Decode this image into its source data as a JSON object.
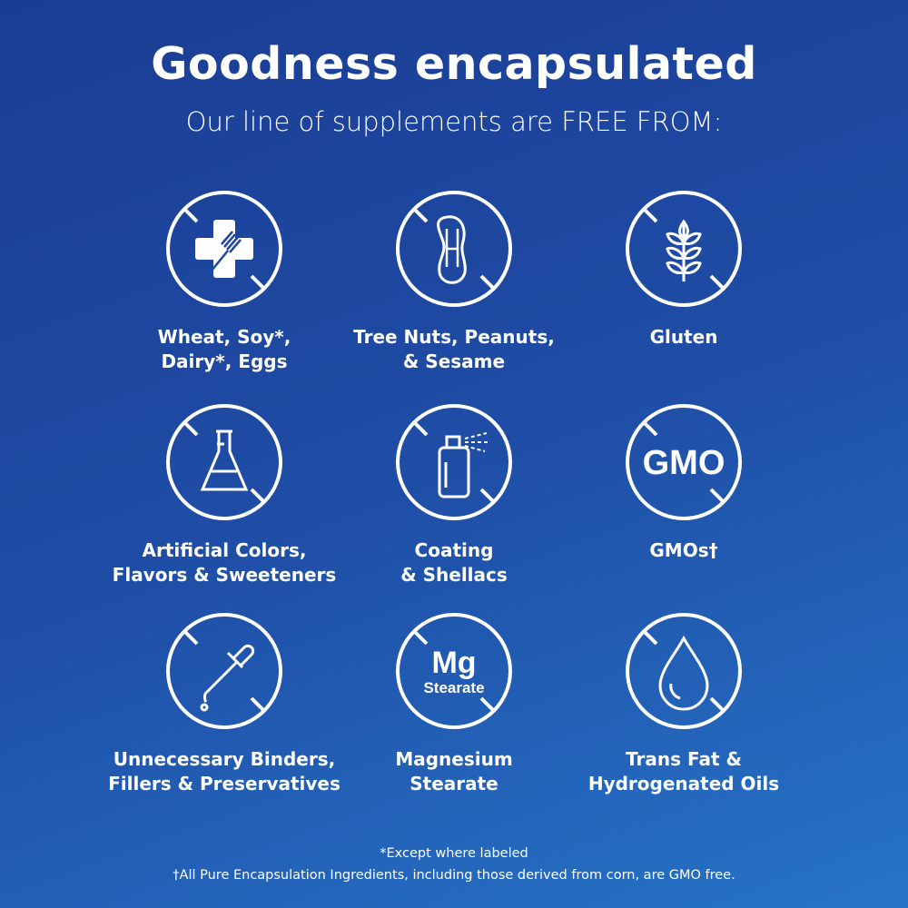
{
  "header": {
    "title": "Goodness encapsulated",
    "subtitle": "Our line of supplements are FREE FROM:"
  },
  "items": [
    {
      "icon": "allergen-cross-fork-icon",
      "label": "Wheat, Soy*,\nDairy*, Eggs"
    },
    {
      "icon": "peanut-icon",
      "label": "Tree Nuts, Peanuts,\n& Sesame"
    },
    {
      "icon": "wheat-icon",
      "label": "Gluten"
    },
    {
      "icon": "flask-icon",
      "label": "Artificial Colors,\nFlavors & Sweeteners"
    },
    {
      "icon": "spray-can-icon",
      "label": "Coating\n& Shellacs"
    },
    {
      "icon": "gmo-text-icon",
      "label": "GMOs†",
      "icon_text": "GMO"
    },
    {
      "icon": "dropper-icon",
      "label": "Unnecessary Binders,\nFillers & Preservatives"
    },
    {
      "icon": "mg-stearate-icon",
      "label": "Magnesium\nStearate",
      "icon_text": "Mg",
      "icon_subtext": "Stearate"
    },
    {
      "icon": "oil-drop-icon",
      "label": "Trans Fat &\nHydrogenated Oils"
    }
  ],
  "footnotes": [
    "*Except where labeled",
    "†All Pure Encapsulation Ingredients, including those derived from corn, are GMO free."
  ],
  "colors": {
    "background_start": "#1b3c93",
    "background_end": "#2674c7",
    "foreground": "#ffffff"
  }
}
